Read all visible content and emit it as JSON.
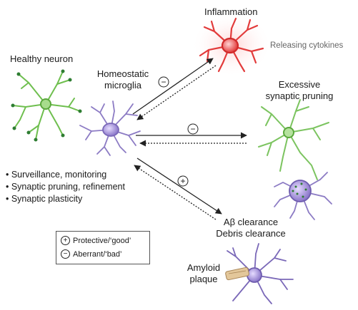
{
  "labels": {
    "healthy_neuron": "Healthy neuron",
    "homeostatic_microglia": "Homeostatic\nmicroglia",
    "inflammation": "Inflammation",
    "releasing_cytokines": "Releasing cytokines",
    "excessive_pruning": "Excessive\nsynaptic pruning",
    "abeta_clearance": "Aβ clearance\nDebris clearance",
    "amyloid_plaque": "Amyloid\nplaque"
  },
  "functions": [
    "• Surveillance, monitoring",
    "• Synaptic pruning, refinement",
    "• Synaptic plasticity"
  ],
  "signs": {
    "to_inflammation": "−",
    "to_pruning": "−",
    "to_clearance": "+"
  },
  "legend": {
    "protective_symbol": "+",
    "protective": "Protective/‘good’",
    "aberrant_symbol": "−",
    "aberrant": "Aberrant/‘bad’"
  },
  "colors": {
    "neuron": "#6fbf4f",
    "neuron_dark": "#2e7d32",
    "microglia": "#8c7bc4",
    "microglia_body": "#a895d6",
    "inflammation": "#e83a3a",
    "inflammation_glow": "#ffb3b3",
    "plaque": "#d9b98a",
    "arrow": "#222222"
  }
}
